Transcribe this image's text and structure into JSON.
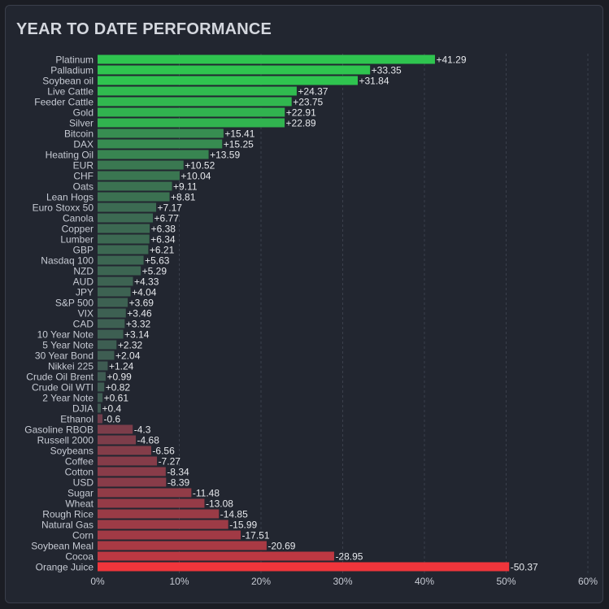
{
  "title": "YEAR TO DATE PERFORMANCE",
  "chart_data": {
    "type": "bar",
    "orientation": "horizontal",
    "title": "YEAR TO DATE PERFORMANCE",
    "xlim": [
      0,
      60
    ],
    "xticks": [
      0,
      10,
      20,
      30,
      40,
      50,
      60
    ],
    "xtick_labels": [
      "0%",
      "10%",
      "20%",
      "30%",
      "40%",
      "50%",
      "60%"
    ],
    "grid": "vertical dashed",
    "bar_length": "absolute value",
    "colors": {
      "strong_positive": "#2fc44f",
      "weak_positive": "#3e5a52",
      "weak_negative": "#6e3e4c",
      "strong_negative": "#f0353b"
    },
    "categories": [
      "Platinum",
      "Palladium",
      "Soybean oil",
      "Live Cattle",
      "Feeder Cattle",
      "Gold",
      "Silver",
      "Bitcoin",
      "DAX",
      "Heating Oil",
      "EUR",
      "CHF",
      "Oats",
      "Lean Hogs",
      "Euro Stoxx 50",
      "Canola",
      "Copper",
      "Lumber",
      "GBP",
      "Nasdaq 100",
      "NZD",
      "AUD",
      "JPY",
      "S&P 500",
      "VIX",
      "CAD",
      "10 Year Note",
      "5 Year Note",
      "30 Year Bond",
      "Nikkei 225",
      "Crude Oil Brent",
      "Crude Oil WTI",
      "2 Year Note",
      "DJIA",
      "Ethanol",
      "Gasoline RBOB",
      "Russell 2000",
      "Soybeans",
      "Coffee",
      "Cotton",
      "USD",
      "Sugar",
      "Wheat",
      "Rough Rice",
      "Natural Gas",
      "Corn",
      "Soybean Meal",
      "Cocoa",
      "Orange Juice"
    ],
    "values": [
      41.29,
      33.35,
      31.84,
      24.37,
      23.75,
      22.91,
      22.89,
      15.41,
      15.25,
      13.59,
      10.52,
      10.04,
      9.11,
      8.81,
      7.17,
      6.77,
      6.38,
      6.34,
      6.21,
      5.63,
      5.29,
      4.33,
      4.04,
      3.69,
      3.46,
      3.32,
      3.14,
      2.32,
      2.04,
      1.24,
      0.99,
      0.82,
      0.61,
      0.4,
      -0.6,
      -4.3,
      -4.68,
      -6.56,
      -7.27,
      -8.34,
      -8.39,
      -11.48,
      -13.08,
      -14.85,
      -15.99,
      -17.51,
      -20.69,
      -28.95,
      -50.37
    ],
    "value_labels": [
      "+41.29",
      "+33.35",
      "+31.84",
      "+24.37",
      "+23.75",
      "+22.91",
      "+22.89",
      "+15.41",
      "+15.25",
      "+13.59",
      "+10.52",
      "+10.04",
      "+9.11",
      "+8.81",
      "+7.17",
      "+6.77",
      "+6.38",
      "+6.34",
      "+6.21",
      "+5.63",
      "+5.29",
      "+4.33",
      "+4.04",
      "+3.69",
      "+3.46",
      "+3.32",
      "+3.14",
      "+2.32",
      "+2.04",
      "+1.24",
      "+0.99",
      "+0.82",
      "+0.61",
      "+0.4",
      "-0.6",
      "-4.3",
      "-4.68",
      "-6.56",
      "-7.27",
      "-8.34",
      "-8.39",
      "-11.48",
      "-13.08",
      "-14.85",
      "-15.99",
      "-17.51",
      "-20.69",
      "-28.95",
      "-50.37"
    ]
  }
}
